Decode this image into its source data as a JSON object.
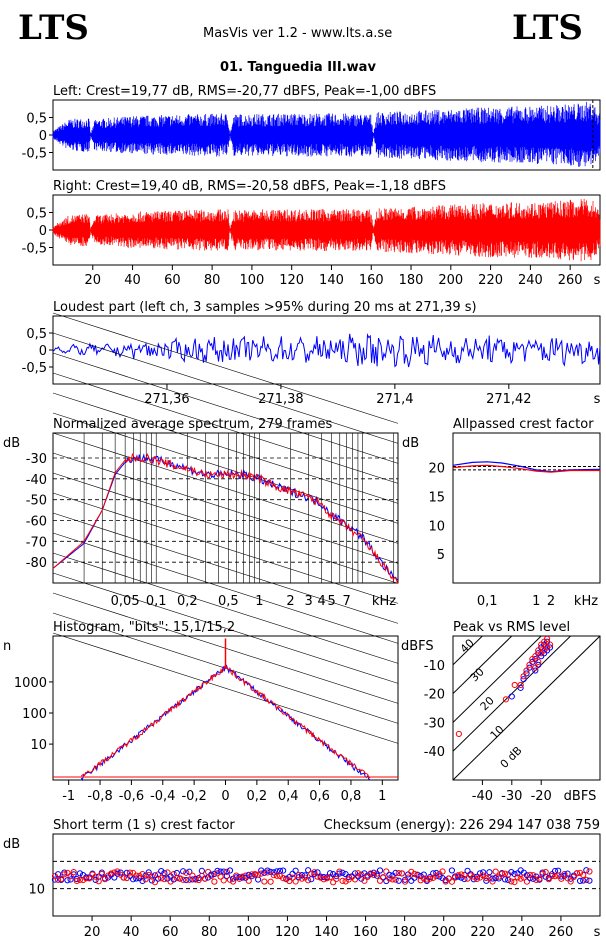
{
  "header": {
    "logo_left": "LTS",
    "logo_right": "LTS",
    "app_title": "MasVis ver 1.2 - www.lts.a.se",
    "file_name": "01. Tanguedia III.wav"
  },
  "colors": {
    "left": "#0000ff",
    "right": "#ff0000",
    "grid": "#000000"
  },
  "chart_data": [
    {
      "id": "left-waveform",
      "type": "area",
      "title": "Left: Crest=19,77 dB, RMS=-20,77 dBFS, Peak=-1,00 dBFS",
      "y_ticks": [
        "0,5",
        "0",
        "-0,5"
      ],
      "ylim": [
        -1,
        1
      ],
      "xlim": [
        0,
        275
      ],
      "x_ticks": [],
      "x_unit": "",
      "envelope": [
        [
          0,
          0.12
        ],
        [
          8,
          0.45
        ],
        [
          18,
          0.5
        ],
        [
          19,
          0.05
        ],
        [
          21,
          0.45
        ],
        [
          40,
          0.55
        ],
        [
          70,
          0.6
        ],
        [
          88,
          0.62
        ],
        [
          89,
          0.05
        ],
        [
          91,
          0.6
        ],
        [
          120,
          0.62
        ],
        [
          150,
          0.62
        ],
        [
          160,
          0.6
        ],
        [
          161,
          0.08
        ],
        [
          163,
          0.65
        ],
        [
          190,
          0.72
        ],
        [
          220,
          0.8
        ],
        [
          250,
          0.85
        ],
        [
          265,
          0.92
        ],
        [
          271,
          0.98
        ],
        [
          275,
          0.6
        ]
      ],
      "marker_x": 271.39
    },
    {
      "id": "right-waveform",
      "type": "area",
      "title": "Right: Crest=19,40 dB, RMS=-20,58 dBFS, Peak=-1,18 dBFS",
      "y_ticks": [
        "0,5",
        "0",
        "-0,5"
      ],
      "ylim": [
        -1,
        1
      ],
      "xlim": [
        0,
        275
      ],
      "x_ticks": [
        "20",
        "40",
        "60",
        "80",
        "100",
        "120",
        "140",
        "160",
        "180",
        "200",
        "220",
        "240",
        "260"
      ],
      "x_unit": "s",
      "envelope": [
        [
          0,
          0.12
        ],
        [
          8,
          0.42
        ],
        [
          18,
          0.48
        ],
        [
          19,
          0.05
        ],
        [
          21,
          0.42
        ],
        [
          40,
          0.52
        ],
        [
          70,
          0.58
        ],
        [
          88,
          0.6
        ],
        [
          89,
          0.05
        ],
        [
          91,
          0.58
        ],
        [
          120,
          0.6
        ],
        [
          150,
          0.6
        ],
        [
          160,
          0.58
        ],
        [
          161,
          0.08
        ],
        [
          163,
          0.62
        ],
        [
          190,
          0.7
        ],
        [
          220,
          0.78
        ],
        [
          250,
          0.82
        ],
        [
          265,
          0.9
        ],
        [
          271,
          0.9
        ],
        [
          275,
          0.55
        ]
      ]
    },
    {
      "id": "loudest-part",
      "type": "line",
      "title": "Loudest part (left  ch, 3 samples >95% during 20 ms at 271,39 s)",
      "y_ticks": [
        "0,5",
        "0",
        "-0,5"
      ],
      "ylim": [
        -1,
        1
      ],
      "xlim": [
        271.34,
        271.436
      ],
      "x_ticks": [
        "271,36",
        "271,38",
        "271,4",
        "271,42"
      ],
      "x_unit": "s",
      "envelope": [
        [
          271.34,
          0.05
        ],
        [
          271.35,
          0.15
        ],
        [
          271.36,
          0.25
        ],
        [
          271.37,
          0.35
        ],
        [
          271.38,
          0.35
        ],
        [
          271.39,
          0.4
        ],
        [
          271.4,
          0.45
        ],
        [
          271.41,
          0.4
        ],
        [
          271.42,
          0.4
        ],
        [
          271.436,
          0.35
        ]
      ]
    },
    {
      "id": "spectrum",
      "type": "line",
      "title": "Normalized average spectrum, 279 frames",
      "ylabel": "dB",
      "y_ticks": [
        "-30",
        "-40",
        "-50",
        "-60",
        "-70",
        "-80"
      ],
      "ylim": [
        -90,
        -18
      ],
      "xlim": [
        0.01,
        22
      ],
      "x_scale": "log",
      "x_ticks": [
        "0,05",
        "0,1",
        "0,2",
        "0,5",
        "1",
        "2",
        "3",
        "4",
        "5",
        "7"
      ],
      "x_unit": "kHz",
      "series": [
        {
          "name": "left",
          "x": [
            0.01,
            0.02,
            0.03,
            0.04,
            0.05,
            0.06,
            0.08,
            0.1,
            0.15,
            0.2,
            0.3,
            0.5,
            0.7,
            1,
            1.5,
            2,
            3,
            4,
            5,
            7,
            10,
            15,
            20,
            22
          ],
          "y": [
            -83,
            -71,
            -55,
            -38,
            -32,
            -30,
            -30,
            -31,
            -33,
            -35,
            -38,
            -38,
            -38,
            -40,
            -44,
            -46,
            -49,
            -52,
            -57,
            -62,
            -68,
            -80,
            -88,
            -89
          ]
        },
        {
          "name": "right",
          "x": [
            0.01,
            0.02,
            0.03,
            0.04,
            0.05,
            0.06,
            0.08,
            0.1,
            0.15,
            0.2,
            0.3,
            0.5,
            0.7,
            1,
            1.5,
            2,
            3,
            4,
            5,
            7,
            10,
            15,
            20,
            22
          ],
          "y": [
            -83,
            -70,
            -55,
            -37,
            -31,
            -30,
            -30,
            -31,
            -34,
            -35,
            -38,
            -38,
            -38,
            -40,
            -44,
            -46,
            -49,
            -52,
            -58,
            -63,
            -69,
            -80,
            -88,
            -89
          ]
        }
      ]
    },
    {
      "id": "allpassed-crest",
      "type": "line",
      "title": "Allpassed crest factor",
      "ylabel": "dB",
      "y_ticks": [
        "20",
        "15",
        "10",
        "5"
      ],
      "ylim": [
        0,
        26
      ],
      "xlim": [
        0.02,
        20
      ],
      "x_scale": "log",
      "x_ticks": [
        "0,1",
        "1",
        "2"
      ],
      "x_unit": "kHz",
      "series": [
        {
          "name": "left",
          "x": [
            0.02,
            0.05,
            0.1,
            0.2,
            0.5,
            1,
            2,
            5,
            20
          ],
          "y": [
            20.4,
            20.9,
            21.0,
            20.8,
            20.2,
            19.6,
            19.3,
            19.6,
            19.7
          ]
        },
        {
          "name": "right",
          "x": [
            0.02,
            0.05,
            0.1,
            0.2,
            0.5,
            1,
            2,
            5,
            20
          ],
          "y": [
            20.0,
            20.3,
            20.4,
            20.2,
            19.8,
            19.4,
            19.2,
            19.5,
            19.5
          ]
        }
      ],
      "ref_lines": [
        20.2,
        19.6
      ]
    },
    {
      "id": "histogram",
      "type": "line",
      "title": "Histogram, \"bits\": 15,1/15,2",
      "ylabel": "n",
      "y_ticks": [
        "1000",
        "100",
        "10"
      ],
      "y_scale": "log",
      "ylim": [
        0.7,
        30000
      ],
      "xlim": [
        -1.1,
        1.1
      ],
      "x_ticks": [
        "-1",
        "-0,8",
        "-0,6",
        "-0,4",
        "-0,2",
        "0",
        "0,2",
        "0,4",
        "0,6",
        "0,8",
        "1"
      ],
      "x_unit": "",
      "peak_value": 3000,
      "spike_value": 25000,
      "decay_per_unit": 10.2,
      "extent": [
        -0.92,
        0.92
      ]
    },
    {
      "id": "peak-vs-rms",
      "type": "scatter",
      "title": "Peak vs RMS level",
      "ylabel": "dBFS",
      "xlabel": "dBFS",
      "y_ticks": [
        "-10",
        "-20",
        "-30",
        "-40"
      ],
      "ylim": [
        -50,
        0
      ],
      "xlim": [
        -50,
        0
      ],
      "x_ticks": [
        "-40",
        "-30",
        "-20"
      ],
      "diag_labels": [
        "40",
        "30",
        "20",
        "10",
        "0 dB"
      ],
      "series": [
        {
          "name": "left",
          "x": [
            -22,
            -21,
            -20,
            -19,
            -18,
            -23,
            -24,
            -21,
            -20,
            -19,
            -18,
            -22,
            -17,
            -25,
            -26,
            -27,
            -30
          ],
          "y": [
            -8,
            -6,
            -4,
            -3,
            -5,
            -9,
            -11,
            -10,
            -7,
            -6,
            -2,
            -12,
            -4,
            -13,
            -15,
            -18,
            -21
          ]
        },
        {
          "name": "right",
          "x": [
            -22,
            -21,
            -20,
            -19,
            -18,
            -23,
            -24,
            -21,
            -20,
            -19,
            -18,
            -22,
            -17,
            -25,
            -26,
            -27,
            -29,
            -32,
            -48
          ],
          "y": [
            -7,
            -5,
            -3,
            -2,
            -4,
            -8,
            -10,
            -9,
            -6,
            -5,
            -1,
            -11,
            -3,
            -12,
            -14,
            -17,
            -17,
            -22,
            -34
          ]
        }
      ]
    },
    {
      "id": "short-term-crest",
      "type": "scatter",
      "title": "Short term (1 s) crest factor",
      "checksum_label": "Checksum (energy):",
      "checksum_value": "226 294 147 038 759",
      "ylabel": "dB",
      "y_ticks": [
        "10"
      ],
      "ylim": [
        0,
        30
      ],
      "xlim": [
        0,
        280
      ],
      "x_ticks": [
        "20",
        "40",
        "60",
        "80",
        "100",
        "120",
        "140",
        "160",
        "180",
        "200",
        "220",
        "240",
        "260"
      ],
      "x_unit": "s",
      "ref_lines": [
        20,
        10
      ],
      "mean_left": 14.8,
      "mean_right": 14.3
    }
  ]
}
